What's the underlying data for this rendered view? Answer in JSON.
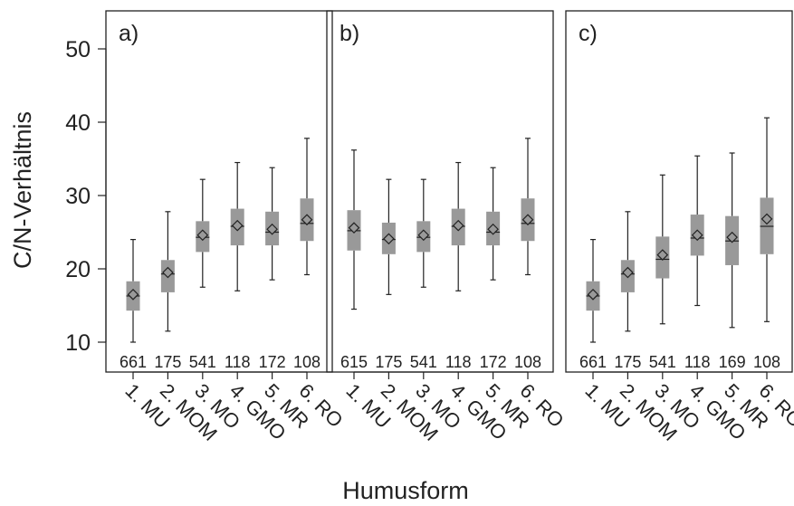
{
  "chart_data": {
    "type": "boxplot",
    "ylabel": "C/N-Verhältnis",
    "xlabel": "Humusform",
    "ylim": [
      5,
      55
    ],
    "yticks": [
      "10",
      "20",
      "30",
      "40",
      "50"
    ],
    "grid": false,
    "legend": "none",
    "categories": [
      "1. MU",
      "2. MOM",
      "3. MO",
      "4. GMO",
      "5. MR",
      "6. RO"
    ],
    "colors": {
      "box": "#999999",
      "line": "#222222",
      "frame": "#222222"
    },
    "panels": [
      {
        "label": "a)",
        "counts": [
          "661",
          "175",
          "541",
          "118",
          "172",
          "108"
        ],
        "boxes": [
          {
            "min": 10.0,
            "q1": 14.3,
            "median": 16.3,
            "q3": 18.3,
            "max": 24.0,
            "mean": 16.5
          },
          {
            "min": 11.5,
            "q1": 16.8,
            "median": 19.3,
            "q3": 21.2,
            "max": 27.8,
            "mean": 19.5
          },
          {
            "min": 17.5,
            "q1": 22.3,
            "median": 24.3,
            "q3": 26.5,
            "max": 32.2,
            "mean": 24.6
          },
          {
            "min": 17.0,
            "q1": 23.2,
            "median": 25.8,
            "q3": 28.2,
            "max": 34.5,
            "mean": 25.9
          },
          {
            "min": 18.5,
            "q1": 23.2,
            "median": 25.0,
            "q3": 27.8,
            "max": 33.8,
            "mean": 25.4
          },
          {
            "min": 19.2,
            "q1": 23.8,
            "median": 26.2,
            "q3": 29.6,
            "max": 37.8,
            "mean": 26.7
          }
        ]
      },
      {
        "label": "b)",
        "counts": [
          "615",
          "175",
          "541",
          "118",
          "172",
          "108"
        ],
        "boxes": [
          {
            "min": 14.5,
            "q1": 22.5,
            "median": 25.2,
            "q3": 28.0,
            "max": 36.2,
            "mean": 25.6
          },
          {
            "min": 16.5,
            "q1": 22.0,
            "median": 24.0,
            "q3": 26.3,
            "max": 32.2,
            "mean": 24.1
          },
          {
            "min": 17.5,
            "q1": 22.3,
            "median": 24.3,
            "q3": 26.5,
            "max": 32.2,
            "mean": 24.6
          },
          {
            "min": 17.0,
            "q1": 23.2,
            "median": 25.8,
            "q3": 28.2,
            "max": 34.5,
            "mean": 25.9
          },
          {
            "min": 18.5,
            "q1": 23.2,
            "median": 25.0,
            "q3": 27.8,
            "max": 33.8,
            "mean": 25.4
          },
          {
            "min": 19.2,
            "q1": 23.8,
            "median": 26.2,
            "q3": 29.6,
            "max": 37.8,
            "mean": 26.7
          }
        ]
      },
      {
        "label": "c)",
        "counts": [
          "661",
          "175",
          "541",
          "118",
          "169",
          "108"
        ],
        "boxes": [
          {
            "min": 10.0,
            "q1": 14.3,
            "median": 16.3,
            "q3": 18.3,
            "max": 24.0,
            "mean": 16.5
          },
          {
            "min": 11.5,
            "q1": 16.8,
            "median": 19.3,
            "q3": 21.2,
            "max": 27.8,
            "mean": 19.5
          },
          {
            "min": 12.5,
            "q1": 18.7,
            "median": 21.3,
            "q3": 24.4,
            "max": 32.8,
            "mean": 21.9
          },
          {
            "min": 15.0,
            "q1": 21.8,
            "median": 24.2,
            "q3": 27.4,
            "max": 35.4,
            "mean": 24.6
          },
          {
            "min": 12.0,
            "q1": 20.5,
            "median": 23.8,
            "q3": 27.2,
            "max": 35.8,
            "mean": 24.3
          },
          {
            "min": 12.8,
            "q1": 22.0,
            "median": 25.8,
            "q3": 29.7,
            "max": 40.6,
            "mean": 26.8
          }
        ]
      }
    ]
  }
}
